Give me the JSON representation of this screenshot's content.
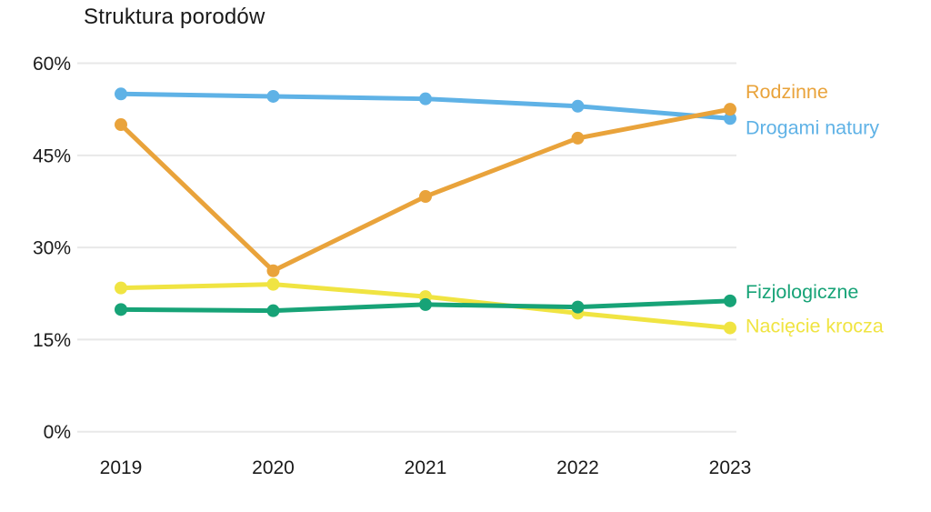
{
  "title": "Struktura porodów",
  "colors": {
    "background": "#ffffff",
    "grid": "#e8e8e8",
    "text": "#1a1a1a"
  },
  "chart_data": {
    "type": "line",
    "title": "Struktura porodów",
    "x": [
      "2019",
      "2020",
      "2021",
      "2022",
      "2023"
    ],
    "xlabel": "",
    "ylabel": "",
    "unit": "%",
    "ylim": [
      0,
      60
    ],
    "ytick_values": [
      0,
      15,
      30,
      45,
      60
    ],
    "ytick_labels": [
      "0%",
      "15%",
      "30%",
      "45%",
      "60%"
    ],
    "grid": true,
    "legend_position": "direct-labels-at-line-end",
    "series": [
      {
        "name": "Drogami natury",
        "color": "#5FB2E6",
        "values": [
          55.0,
          54.6,
          54.2,
          53.0,
          51.0
        ],
        "label_dy": 10
      },
      {
        "name": "Rodzinne",
        "color": "#E9A33B",
        "values": [
          50.0,
          26.2,
          38.3,
          47.8,
          52.5
        ],
        "label_dy": -19
      },
      {
        "name": "Nacięcie krocza",
        "color": "#F0E442",
        "values": [
          23.4,
          24.0,
          22.0,
          19.3,
          16.9
        ],
        "label_dy": -2
      },
      {
        "name": "Fizjologiczne",
        "color": "#17A377",
        "values": [
          19.9,
          19.7,
          20.7,
          20.3,
          21.3
        ],
        "label_dy": -10
      }
    ]
  }
}
